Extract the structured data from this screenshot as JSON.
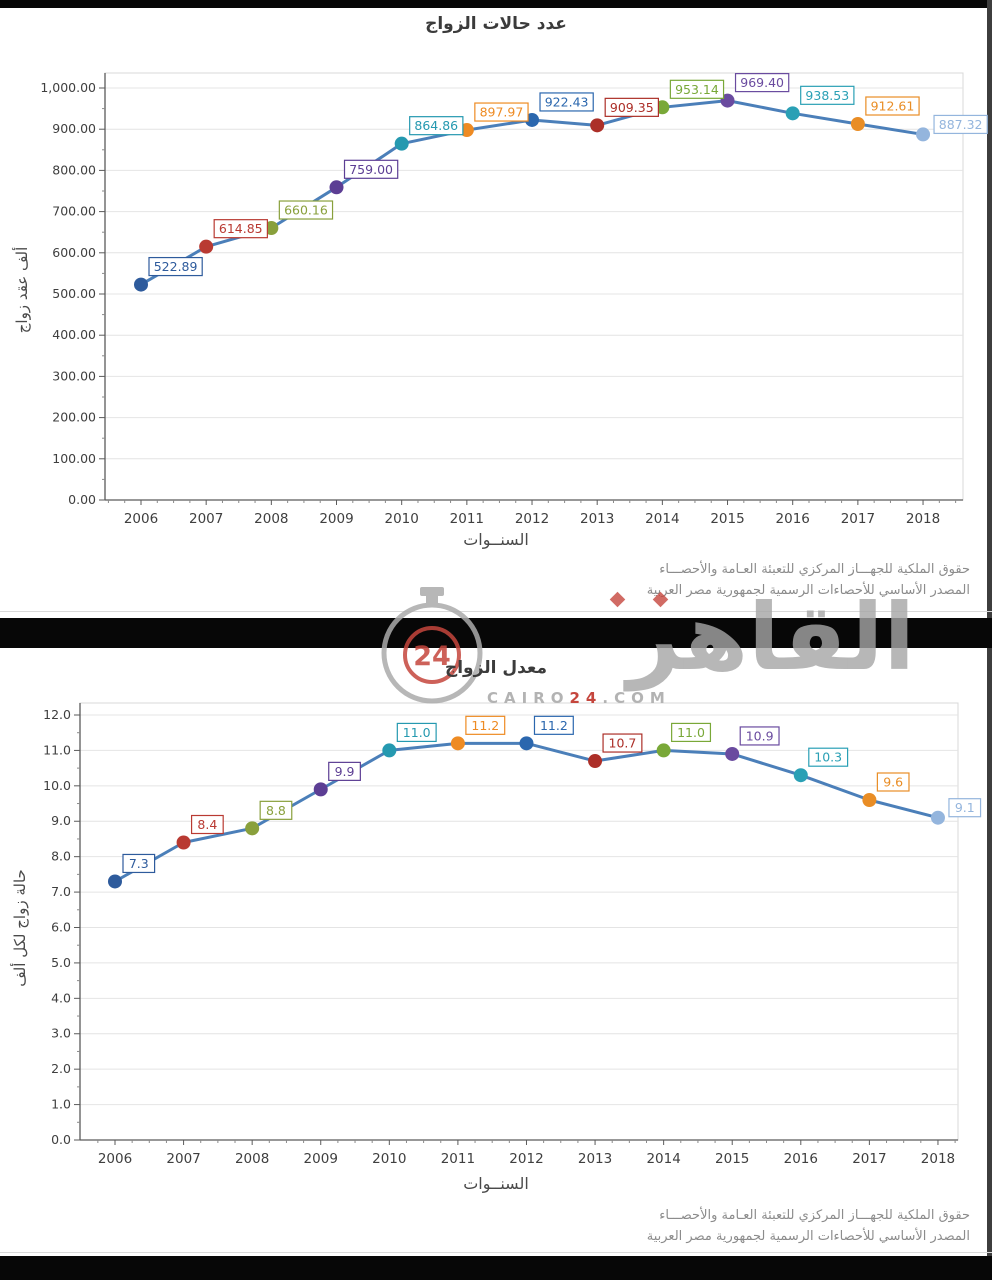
{
  "page": {
    "background": "#ffffff",
    "bar_color": "#070707"
  },
  "watermark": {
    "badge_number": "24",
    "logo_text": "القاهر",
    "domain_prefix": "CAIRO",
    "domain_number": "24",
    "domain_suffix": ".COM",
    "red": "#C5463D",
    "gray": "#A6A6A6"
  },
  "source": {
    "line1": "حقوق الملكية للجهـــاز المركزي للتعبئة العـامة والأحصـــاء",
    "line2": "المصدر الأساسي للأحصاءات الرسمية لجمهورية مصر العربية"
  },
  "chart_data": [
    {
      "type": "line",
      "title": "عدد حالات الزواج",
      "xlabel": "السنــوات",
      "ylabel": "ألف عقد زواج",
      "categories": [
        "2006",
        "2007",
        "2008",
        "2009",
        "2010",
        "2011",
        "2012",
        "2013",
        "2014",
        "2015",
        "2016",
        "2017",
        "2018"
      ],
      "values": [
        522.89,
        614.85,
        660.16,
        759.0,
        864.86,
        897.97,
        922.43,
        909.35,
        953.14,
        969.4,
        938.53,
        912.61,
        887.32
      ],
      "value_labels": [
        "522.89",
        "614.85",
        "660.16",
        "759.00",
        "864.86",
        "897.97",
        "922.43",
        "909.35",
        "953.14",
        "969.40",
        "938.53",
        "912.61",
        "887.32"
      ],
      "ylim": [
        0,
        1000
      ],
      "ytick_values": [
        0,
        100,
        200,
        300,
        400,
        500,
        600,
        700,
        800,
        900,
        1000
      ],
      "ytick_labels": [
        "0.00",
        "100.00",
        "200.00",
        "300.00",
        "400.00",
        "500.00",
        "600.00",
        "700.00",
        "800.00",
        "900.00",
        "1,000.00"
      ],
      "grid": true,
      "legend": "none",
      "line_color": "#4B7FB9",
      "point_colors": [
        "#2E5B9C",
        "#B93A32",
        "#89A03C",
        "#5C3E94",
        "#2599B0",
        "#EE8B23",
        "#2B67AE",
        "#AC2F28",
        "#79A838",
        "#6A4B9F",
        "#2AA0B5",
        "#E98D25",
        "#94B5DD"
      ]
    },
    {
      "type": "line",
      "title": "معدل الزواج",
      "xlabel": "السنــوات",
      "ylabel": "حالة زواج لكل ألف",
      "categories": [
        "2006",
        "2007",
        "2008",
        "2009",
        "2010",
        "2011",
        "2012",
        "2013",
        "2014",
        "2015",
        "2016",
        "2017",
        "2018"
      ],
      "values": [
        7.3,
        8.4,
        8.8,
        9.9,
        11.0,
        11.2,
        11.2,
        10.7,
        11.0,
        10.9,
        10.3,
        9.6,
        9.1
      ],
      "value_labels": [
        "7.3",
        "8.4",
        "8.8",
        "9.9",
        "11.0",
        "11.2",
        "11.2",
        "10.7",
        "11.0",
        "10.9",
        "10.3",
        "9.6",
        "9.1"
      ],
      "ylim": [
        0,
        12
      ],
      "ytick_values": [
        0,
        1,
        2,
        3,
        4,
        5,
        6,
        7,
        8,
        9,
        10,
        11,
        12
      ],
      "ytick_labels": [
        "0.0",
        "1.0",
        "2.0",
        "3.0",
        "4.0",
        "5.0",
        "6.0",
        "7.0",
        "8.0",
        "9.0",
        "10.0",
        "11.0",
        "12.0"
      ],
      "grid": true,
      "legend": "none",
      "line_color": "#4B7FB9",
      "point_colors": [
        "#2E5B9C",
        "#B93A32",
        "#89A03C",
        "#5C3E94",
        "#2599B0",
        "#EE8B23",
        "#2B67AE",
        "#AC2F28",
        "#79A838",
        "#6A4B9F",
        "#2AA0B5",
        "#E98D25",
        "#94B5DD"
      ]
    }
  ]
}
